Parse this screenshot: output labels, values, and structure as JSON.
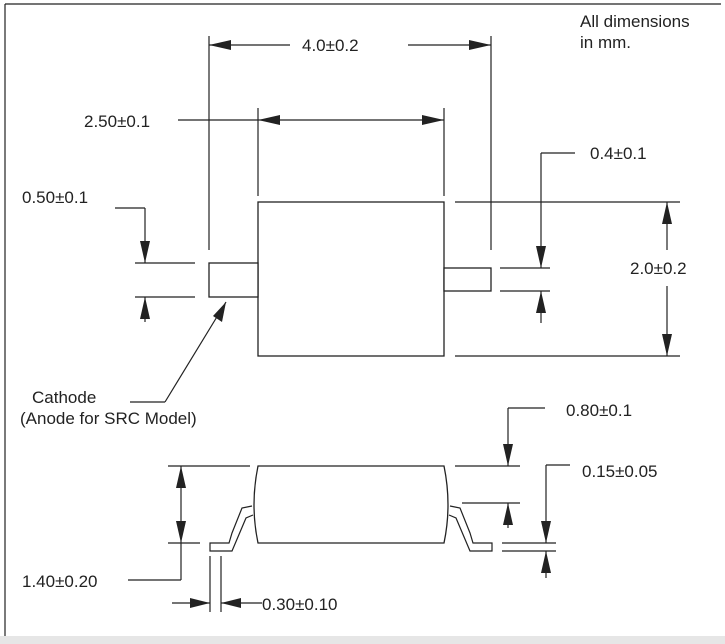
{
  "note": {
    "line1": "All dimensions",
    "line2": "in mm."
  },
  "dimensions": {
    "overall_length": "4.0±0.2",
    "body_length": "2.50±0.1",
    "lead_height": "0.50±0.1",
    "lead_thickness_top": "0.4±0.1",
    "body_width": "2.0±0.2",
    "lead_standoff": "0.80±0.1",
    "lead_plating": "0.15±0.05",
    "overall_height": "1.40±0.20",
    "lead_width": "0.30±0.10"
  },
  "cathode": {
    "line1": "Cathode",
    "line2": "(Anode for SRC Model)"
  }
}
